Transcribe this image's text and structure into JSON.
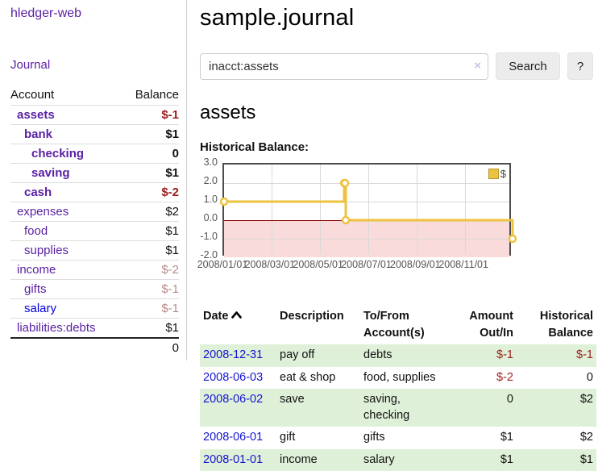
{
  "app": {
    "title": "hledger-web"
  },
  "colors": {
    "link_purple": "#5b21a5",
    "link_blue": "#0000e0",
    "negative_strong": "#9e1a1a",
    "negative_soft": "#b98a8a",
    "row_stripe_green": "#dff0d8",
    "chart_line_gold": "#edc240",
    "chart_negative_fill": "#f9dbdb",
    "chart_zero_line": "#8b0000"
  },
  "icons": {
    "sort_ascending": "chevron-up",
    "clear_search": "×"
  },
  "sidebar": {
    "nav": {
      "journal": "Journal"
    },
    "accounts": {
      "headers": {
        "account": "Account",
        "balance": "Balance"
      },
      "rows": [
        {
          "account": "assets",
          "balance": "$-1"
        },
        {
          "account": "bank",
          "balance": "$1"
        },
        {
          "account": "checking",
          "balance": "0"
        },
        {
          "account": "saving",
          "balance": "$1"
        },
        {
          "account": "cash",
          "balance": "$-2"
        },
        {
          "account": "expenses",
          "balance": "$2"
        },
        {
          "account": "food",
          "balance": "$1"
        },
        {
          "account": "supplies",
          "balance": "$1"
        },
        {
          "account": "income",
          "balance": "$-2"
        },
        {
          "account": "gifts",
          "balance": "$-1"
        },
        {
          "account": "salary",
          "balance": "$-1"
        },
        {
          "account": "liabilities:debts",
          "balance": "$1"
        }
      ],
      "total": "0"
    }
  },
  "main": {
    "title": "sample.journal",
    "search": {
      "value": "inacct:assets",
      "clear_icon": "×",
      "button_label": "Search",
      "help_label": "?"
    },
    "account_heading": "assets",
    "chart_heading": "Historical Balance:"
  },
  "chart_data": {
    "type": "line",
    "step": true,
    "title": "Historical Balance",
    "ylim": [
      -2,
      3
    ],
    "x_range_days": 365,
    "yticks": [
      {
        "label": "3.0",
        "value": 3
      },
      {
        "label": "2.0",
        "value": 2
      },
      {
        "label": "1.0",
        "value": 1
      },
      {
        "label": "0.0",
        "value": 0
      },
      {
        "label": "-1.0",
        "value": -1
      },
      {
        "label": "-2.0",
        "value": -2
      }
    ],
    "xticks": [
      {
        "label": "2008/01/01",
        "day": 0
      },
      {
        "label": "2008/03/01",
        "day": 60
      },
      {
        "label": "2008/05/01",
        "day": 121
      },
      {
        "label": "2008/07/01",
        "day": 182
      },
      {
        "label": "2008/09/01",
        "day": 244
      },
      {
        "label": "2008/11/01",
        "day": 305
      }
    ],
    "legend_position": "top-right",
    "grid": true,
    "series": [
      {
        "name": "$",
        "color": "#edc240",
        "points": [
          {
            "date": "2008-01-01",
            "day": 0,
            "value": 1
          },
          {
            "date": "2008-06-01",
            "day": 152,
            "value": 2
          },
          {
            "date": "2008-06-02",
            "day": 153,
            "value": 2
          },
          {
            "date": "2008-06-03",
            "day": 154,
            "value": 0
          },
          {
            "date": "2008-12-31",
            "day": 365,
            "value": -1
          }
        ]
      }
    ]
  },
  "register": {
    "headers": {
      "date": "Date",
      "description": "Description",
      "accounts": "To/From Account(s)",
      "amount": "Amount Out/In",
      "balance": "Historical Balance"
    },
    "rows": [
      {
        "date": "2008-12-31",
        "description": "pay off",
        "accounts": "debts",
        "amount": "$-1",
        "balance": "$-1"
      },
      {
        "date": "2008-06-03",
        "description": "eat & shop",
        "accounts": "food, supplies",
        "amount": "$-2",
        "balance": "0"
      },
      {
        "date": "2008-06-02",
        "description": "save",
        "accounts": "saving, checking",
        "amount": "0",
        "balance": "$2"
      },
      {
        "date": "2008-06-01",
        "description": "gift",
        "accounts": "gifts",
        "amount": "$1",
        "balance": "$2"
      },
      {
        "date": "2008-01-01",
        "description": "income",
        "accounts": "salary",
        "amount": "$1",
        "balance": "$1"
      }
    ]
  }
}
